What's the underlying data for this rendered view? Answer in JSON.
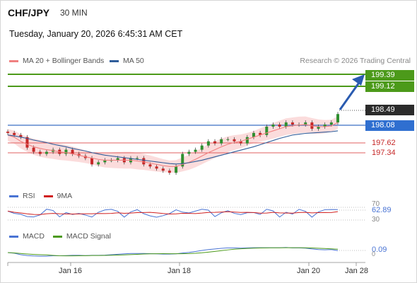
{
  "header": {
    "symbol": "CHF/JPY",
    "timeframe": "30 MIN",
    "datetime": "Tuesday, January 20, 2026 6:45:31 AM CET"
  },
  "legend": {
    "ma20_label": "MA 20 + Bollinger Bands",
    "ma50_label": "MA 50",
    "attribution": "Research © 2026 Trading Central",
    "rsi_label": "RSI",
    "ma9_label": "9MA",
    "macd_label": "MACD",
    "macd_signal_label": "MACD Signal"
  },
  "colors": {
    "ma20": "#f08080",
    "ma50": "#2f5d9a",
    "bollinger_fill": "#fbdcdc",
    "candle": "#2f8f2f",
    "candle_down": "#c62828",
    "target": "#4c9a1a",
    "resistance_line": "#3a6fc4",
    "support": "#e06060",
    "rsi": "#4a74d4",
    "rsi_ma": "#d02020",
    "macd": "#4a74d4",
    "macd_signal": "#4c9a1a",
    "arrow": "#2a5bb0"
  },
  "levels": {
    "target1": "199.39",
    "target2": "199.12",
    "last": "198.49",
    "pivot": "198.08",
    "support1": "197.62",
    "support2": "197.34"
  },
  "indicator_values": {
    "rsi_value": "62.89",
    "rsi_tick_70": "70",
    "rsi_tick_30": "30",
    "macd_value": "0.09",
    "macd_tick_0": "0"
  },
  "chart_data": {
    "type": "line",
    "title": "CHF/JPY",
    "ylim": [
      196.8,
      199.6
    ],
    "x_axis_labels": [
      "Jan 16",
      "Jan 18",
      "Jan 20",
      "Jan 28"
    ],
    "series": [
      {
        "name": "Price",
        "values": [
          198.05,
          198.0,
          197.95,
          197.7,
          197.6,
          197.55,
          197.6,
          197.65,
          197.55,
          197.65,
          197.55,
          197.5,
          197.45,
          197.3,
          197.35,
          197.4,
          197.4,
          197.45,
          197.35,
          197.45,
          197.45,
          197.3,
          197.25,
          197.2,
          197.15,
          197.1,
          197.25,
          197.55,
          197.6,
          197.65,
          197.75,
          197.85,
          197.8,
          197.9,
          197.9,
          197.85,
          197.8,
          197.95,
          198.05,
          198.0,
          198.2,
          198.25,
          198.2,
          198.3,
          198.25,
          198.25,
          198.3,
          198.15,
          198.2,
          198.25,
          198.3,
          198.5
        ]
      },
      {
        "name": "MA 20",
        "values": [
          198.0,
          197.95,
          197.85,
          197.78,
          197.72,
          197.68,
          197.65,
          197.63,
          197.6,
          197.58,
          197.55,
          197.52,
          197.48,
          197.45,
          197.42,
          197.4,
          197.4,
          197.4,
          197.4,
          197.4,
          197.38,
          197.36,
          197.33,
          197.3,
          197.27,
          197.25,
          197.25,
          197.3,
          197.35,
          197.42,
          197.5,
          197.58,
          197.65,
          197.72,
          197.78,
          197.82,
          197.85,
          197.9,
          197.95,
          198.0,
          198.05,
          198.1,
          198.15,
          198.2,
          198.22,
          198.24,
          198.25,
          198.22,
          198.2,
          198.2,
          198.22,
          198.3
        ]
      },
      {
        "name": "MA 50",
        "values": [
          198.0,
          197.98,
          197.95,
          197.92,
          197.88,
          197.85,
          197.82,
          197.78,
          197.75,
          197.72,
          197.68,
          197.65,
          197.62,
          197.58,
          197.55,
          197.52,
          197.5,
          197.48,
          197.46,
          197.44,
          197.42,
          197.4,
          197.38,
          197.36,
          197.34,
          197.32,
          197.31,
          197.32,
          197.34,
          197.37,
          197.4,
          197.44,
          197.48,
          197.52,
          197.56,
          197.6,
          197.64,
          197.68,
          197.72,
          197.77,
          197.82,
          197.87,
          197.92,
          197.96,
          198.0,
          198.02,
          198.04,
          198.05,
          198.06,
          198.07,
          198.08,
          198.1
        ]
      }
    ]
  }
}
